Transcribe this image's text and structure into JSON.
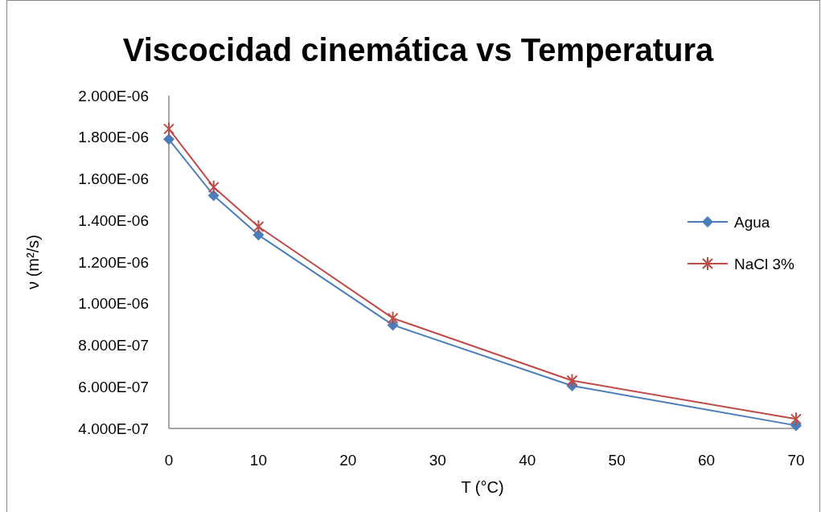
{
  "chart_data": {
    "type": "line",
    "title": "Viscocidad cinemática vs Temperatura",
    "xlabel": "T (°C)",
    "ylabel": "ν (m²/s)",
    "x": [
      0,
      5,
      10,
      25,
      45,
      70
    ],
    "series": [
      {
        "name": "Agua",
        "color": "#4a7ebb",
        "marker": "diamond",
        "values": [
          1.79e-06,
          1.52e-06,
          1.33e-06,
          8.97e-07,
          6.05e-07,
          4.14e-07
        ]
      },
      {
        "name": "NaCl 3%",
        "color": "#be4b48",
        "marker": "cross",
        "values": [
          1.84e-06,
          1.56e-06,
          1.37e-06,
          9.3e-07,
          6.3e-07,
          4.45e-07
        ]
      }
    ],
    "xlim": [
      0,
      70
    ],
    "xticks": [
      0,
      10,
      20,
      30,
      40,
      50,
      60,
      70
    ],
    "ylim": [
      4e-07,
      2e-06
    ],
    "yticks": [
      {
        "value": 4e-07,
        "label": "4.000E-07"
      },
      {
        "value": 6e-07,
        "label": "6.000E-07"
      },
      {
        "value": 8e-07,
        "label": "8.000E-07"
      },
      {
        "value": 1e-06,
        "label": "1.000E-06"
      },
      {
        "value": 1.2e-06,
        "label": "1.200E-06"
      },
      {
        "value": 1.4e-06,
        "label": "1.400E-06"
      },
      {
        "value": 1.6e-06,
        "label": "1.600E-06"
      },
      {
        "value": 1.8e-06,
        "label": "1.800E-06"
      },
      {
        "value": 2e-06,
        "label": "2.000E-06"
      }
    ],
    "legend": "right",
    "line_style": "solid"
  }
}
